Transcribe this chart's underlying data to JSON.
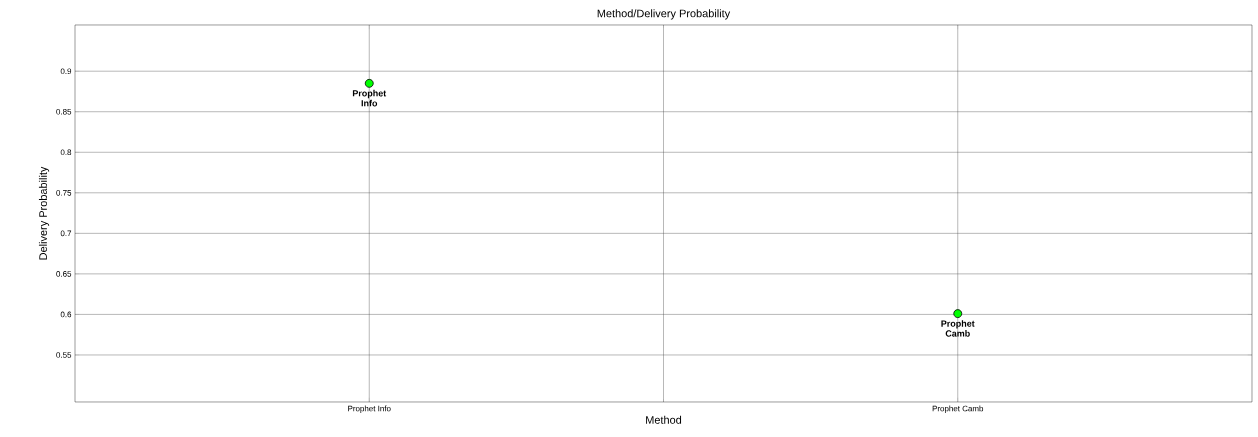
{
  "chart_data": {
    "type": "scatter",
    "title": "Method/Delivery Probability",
    "xlabel": "Method",
    "ylabel": "Delivery Probability",
    "categories": [
      "Prophet Info",
      "Prophet Camb"
    ],
    "values": [
      0.885,
      0.601
    ],
    "color": "#00ff00",
    "marker": "circle",
    "ylim": [
      0.492,
      0.957
    ],
    "yticks": [
      0.55,
      0.6,
      0.65,
      0.7,
      0.75,
      0.8,
      0.85,
      0.9
    ],
    "grid": true,
    "annotations": [
      {
        "text": "Prophet Info",
        "x": "Prophet Info",
        "y": 0.885
      },
      {
        "text": "Prophet Camb",
        "x": "Prophet Camb",
        "y": 0.601
      }
    ]
  }
}
